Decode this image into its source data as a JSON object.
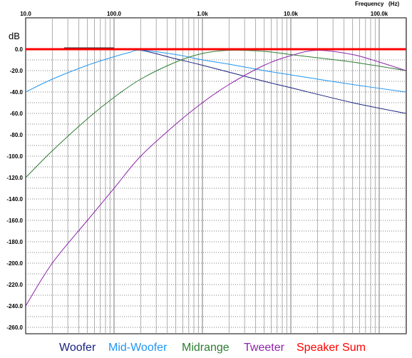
{
  "chart_data": {
    "type": "line",
    "x_scale": "log",
    "xlabel": "Frequency",
    "x_unit": "(Hz)",
    "ylabel": "dB",
    "xlim": [
      10,
      200000
    ],
    "ylim": [
      -260,
      10
    ],
    "grid": true,
    "x_tick_labels": [
      "10.0",
      "100.0",
      "1.0k",
      "10.0k",
      "100.0k"
    ],
    "x_tick_values": [
      10,
      100,
      1000,
      10000,
      100000
    ],
    "y_tick_labels": [
      "0.0",
      "-20.0",
      "-40.0",
      "-60.0",
      "-80.0",
      "-100.0",
      "-120.0",
      "-140.0",
      "-160.0",
      "-180.0",
      "-200.0",
      "-220.0",
      "-240.0",
      "-260.0"
    ],
    "y_tick_values": [
      0,
      -20,
      -40,
      -60,
      -80,
      -100,
      -120,
      -140,
      -160,
      -180,
      -200,
      -220,
      -240,
      -260
    ],
    "legend_position": "bottom",
    "series": [
      {
        "name": "Woofer",
        "color": "#1a237e",
        "x": [
          10,
          50,
          100,
          200,
          500,
          1000,
          5000,
          10000,
          50000,
          200000
        ],
        "y": [
          0,
          0,
          -0.3,
          -1,
          -9,
          -15,
          -30,
          -36,
          -50,
          -60
        ]
      },
      {
        "name": "Mid-Woofer",
        "color": "#2196f3",
        "x": [
          10,
          20,
          50,
          100,
          150,
          200,
          500,
          1000,
          2000,
          5000,
          10000,
          50000,
          200000
        ],
        "y": [
          -40,
          -28,
          -15,
          -7,
          -3,
          -1,
          -5,
          -10,
          -14,
          -20,
          -24,
          -33,
          -40
        ]
      },
      {
        "name": "Midrange",
        "color": "#2e7d32",
        "x": [
          10,
          20,
          50,
          100,
          200,
          500,
          1000,
          2000,
          5000,
          10000,
          20000,
          50000,
          200000
        ],
        "y": [
          -120,
          -95,
          -65,
          -45,
          -28,
          -12,
          -4,
          -1,
          -2,
          -5,
          -8,
          -12,
          -20
        ]
      },
      {
        "name": "Tweeter",
        "color": "#8e24aa",
        "x": [
          10,
          20,
          50,
          100,
          200,
          500,
          1000,
          2000,
          5000,
          10000,
          20000,
          50000,
          100000,
          200000
        ],
        "y": [
          -240,
          -200,
          -160,
          -130,
          -100,
          -70,
          -50,
          -33,
          -15,
          -6,
          -1,
          -5,
          -12,
          -20
        ]
      },
      {
        "name": "Speaker Sum",
        "color": "#ff0000",
        "x": [
          10,
          200000
        ],
        "y": [
          0,
          0
        ]
      }
    ]
  }
}
